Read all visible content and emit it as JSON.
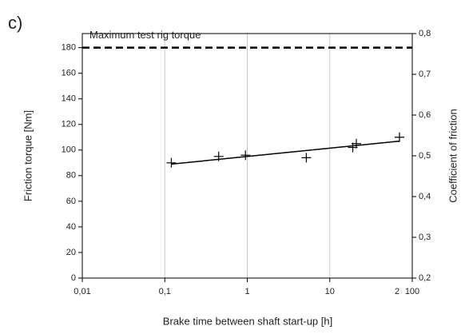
{
  "chart_data": {
    "type": "scatter",
    "panel_label": "c)",
    "x_label": "Brake time between shaft start-up [h]",
    "y_label": "Friction torque [Nm]",
    "y2_label": "Coefficient of friction",
    "x_scale": "log",
    "xlim": [
      0.01,
      100
    ],
    "xticks": [
      {
        "value": 0.01,
        "label": "0,01"
      },
      {
        "value": 0.1,
        "label": "0,1"
      },
      1,
      10,
      100
    ],
    "ylim": [
      0,
      191
    ],
    "yticks": [
      0,
      20,
      40,
      60,
      80,
      100,
      120,
      140,
      160,
      180
    ],
    "y2lim": [
      0.2,
      0.8
    ],
    "y2ticks": [
      {
        "value": 0.2,
        "label": "0,2"
      },
      {
        "value": 0.3,
        "label": "0,3"
      },
      {
        "value": 0.4,
        "label": "0,4"
      },
      {
        "value": 0.5,
        "label": "0,5"
      },
      {
        "value": 0.6,
        "label": "0,6"
      },
      {
        "value": 0.7,
        "label": "0,7"
      },
      {
        "value": 0.8,
        "label": "0,8"
      }
    ],
    "xgrid": true,
    "series": [
      {
        "color": "#000000",
        "x": [
          0.12,
          0.45,
          0.95,
          5.2,
          19,
          21,
          70
        ],
        "values": [
          90,
          95,
          96,
          94,
          102,
          105,
          110
        ]
      }
    ],
    "trend": {
      "color": "#000000",
      "x": [
        0.12,
        70
      ],
      "values": [
        89,
        107
      ]
    },
    "reference_line": {
      "value": 180,
      "label": "Maximum test rig torque"
    },
    "annotations": [
      {
        "text": "2"
      }
    ]
  }
}
